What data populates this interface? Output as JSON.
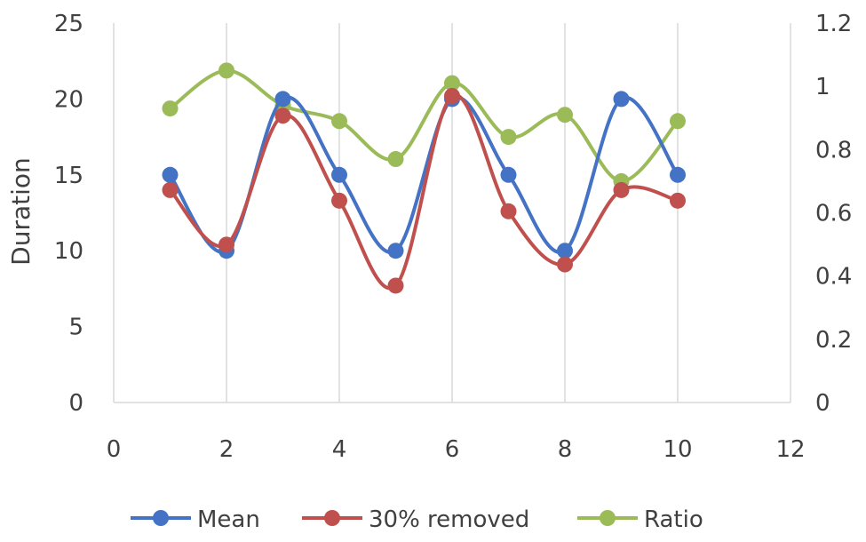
{
  "chart_data": {
    "type": "line",
    "ylabel": "Duration",
    "xlim": [
      0,
      12
    ],
    "ylim": [
      0,
      25
    ],
    "y2lim": [
      0,
      1.2
    ],
    "x_ticks": [
      "0",
      "2",
      "4",
      "6",
      "8",
      "10",
      "12"
    ],
    "y_ticks": [
      "0",
      "5",
      "10",
      "15",
      "20",
      "25"
    ],
    "y2_ticks": [
      "0",
      "0.2",
      "0.4",
      "0.6",
      "0.8",
      "1",
      "1.2"
    ],
    "grid": "vertical",
    "legend_position": "bottom",
    "x": [
      1,
      2,
      3,
      4,
      5,
      6,
      7,
      8,
      9,
      10
    ],
    "series": [
      {
        "name": "Mean",
        "axis": "left",
        "color": "#4472C4",
        "values": [
          15,
          10,
          20,
          15,
          10,
          20,
          15,
          10,
          20,
          15
        ]
      },
      {
        "name": "30% removed",
        "axis": "left",
        "color": "#C0504D",
        "values": [
          14,
          10.4,
          18.9,
          13.3,
          7.7,
          20.2,
          12.6,
          9.1,
          14,
          13.3
        ]
      },
      {
        "name": "Ratio",
        "axis": "right",
        "color": "#9BBB59",
        "values": [
          0.93,
          1.05,
          0.94,
          0.89,
          0.77,
          1.01,
          0.84,
          0.91,
          0.7,
          0.89
        ]
      }
    ]
  }
}
